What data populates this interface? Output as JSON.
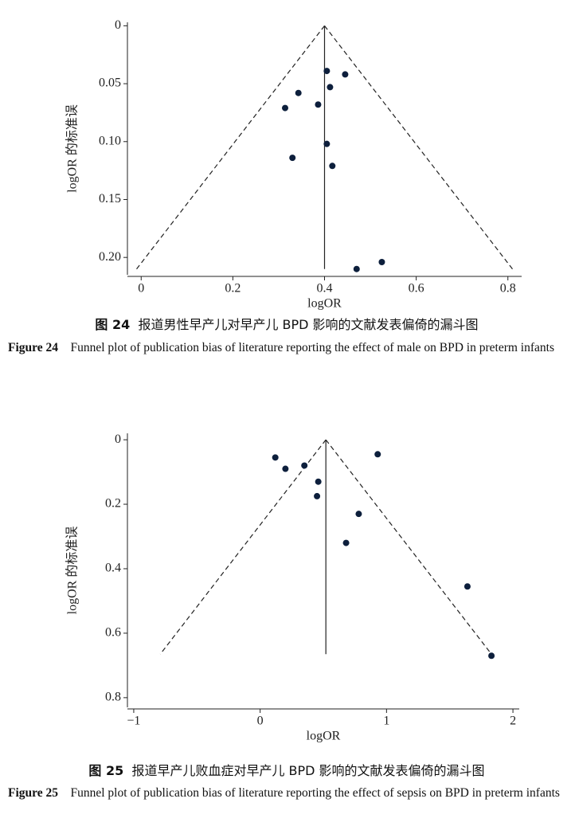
{
  "chart_data": [
    {
      "type": "scatter",
      "x_label": "logOR",
      "y_label": "logOR 的标准误",
      "x": [
        0.405,
        0.445,
        0.412,
        0.343,
        0.386,
        0.314,
        0.405,
        0.33,
        0.417,
        0.47,
        0.525
      ],
      "values": [
        0.039,
        0.042,
        0.053,
        0.058,
        0.068,
        0.071,
        0.102,
        0.114,
        0.121,
        0.21,
        0.204
      ],
      "color": "#0d1f3c",
      "reference": {
        "x": 0.4,
        "y_end": 0.21,
        "left_x": -0.01,
        "right_x": 0.81
      },
      "xlim": [
        -0.03,
        0.83
      ],
      "ylim": [
        -0.003,
        0.215
      ],
      "y_inverted": true,
      "xticks": [
        0,
        0.2,
        0.4,
        0.6,
        0.8
      ],
      "yticks": [
        0,
        0.05,
        {
          "value": 0.1,
          "label": "0.10"
        },
        0.15,
        {
          "value": 0.2,
          "label": "0.20"
        }
      ]
    },
    {
      "type": "scatter",
      "x_label": "logOR",
      "y_label": "logOR 的标准误",
      "x": [
        0.12,
        0.2,
        0.35,
        0.93,
        0.46,
        0.45,
        0.78,
        0.68,
        1.64,
        1.83
      ],
      "values": [
        0.055,
        0.09,
        0.08,
        0.045,
        0.13,
        0.175,
        0.23,
        0.32,
        0.455,
        0.67
      ],
      "color": "#0d1f3c",
      "reference": {
        "x": 0.52,
        "y_end": 0.665,
        "left_x": -0.79,
        "right_x": 1.83
      },
      "xlim": [
        -1.05,
        2.05
      ],
      "ylim": [
        -0.02,
        0.83
      ],
      "y_inverted": true,
      "xticks": [
        {
          "value": -1,
          "label": "−1"
        },
        0,
        1,
        2
      ],
      "yticks": [
        0,
        0.2,
        0.4,
        0.6,
        0.8
      ]
    }
  ],
  "captions": [
    {
      "cn_label": "图 24",
      "cn_text": "报道男性早产儿对早产儿 BPD 影响的文献发表偏倚的漏斗图",
      "en_label": "Figure 24",
      "en_text": "Funnel plot of publication bias of literature reporting the effect of male on BPD in preterm infants"
    },
    {
      "cn_label": "图 25",
      "cn_text": "报道早产儿败血症对早产儿 BPD 影响的文献发表偏倚的漏斗图",
      "en_label": "Figure 25",
      "en_text": "Funnel plot of publication bias of literature reporting the effect of sepsis on BPD in preterm infants"
    }
  ]
}
